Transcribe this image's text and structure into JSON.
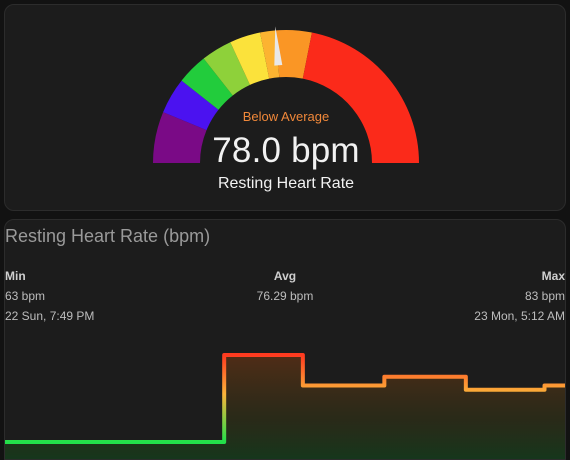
{
  "gauge": {
    "severity_label": "Below Average",
    "value_text": "78.0 bpm",
    "name": "Resting Heart Rate",
    "value": 78.0,
    "min": 40,
    "max": 120,
    "segments": [
      {
        "from": 40,
        "to": 50,
        "color": "#7a0a86"
      },
      {
        "from": 50,
        "to": 57,
        "color": "#4b12f0"
      },
      {
        "from": 57,
        "to": 63,
        "color": "#22cc3c"
      },
      {
        "from": 63,
        "to": 69,
        "color": "#8ed13a"
      },
      {
        "from": 69,
        "to": 75,
        "color": "#fbe23b"
      },
      {
        "from": 75,
        "to": 78,
        "color": "#fcb331"
      },
      {
        "from": 78,
        "to": 85,
        "color": "#fa9625"
      },
      {
        "from": 85,
        "to": 120,
        "color": "#fb2a1a"
      }
    ],
    "needle_color": "#e8e8e8"
  },
  "graph": {
    "title": "Resting Heart Rate (bpm)",
    "stats": {
      "min": {
        "label": "Min",
        "value": "63 bpm",
        "time": "22 Sun, 7:49 PM"
      },
      "avg": {
        "label": "Avg",
        "value": "76.29 bpm"
      },
      "max": {
        "label": "Max",
        "value": "83 bpm",
        "time": "23 Mon, 5:12 AM"
      }
    }
  },
  "chart_data": {
    "type": "line",
    "title": "Resting Heart Rate (bpm)",
    "step": true,
    "series": [
      {
        "x": [
          0,
          0.39,
          0.39,
          0.53,
          0.53,
          0.675,
          0.675,
          0.82,
          0.82,
          0.96,
          0.96,
          1.0
        ],
        "values": [
          63,
          63,
          83,
          83,
          76,
          76,
          78,
          78,
          75,
          75,
          76,
          76
        ]
      }
    ],
    "ylim": [
      63,
      83
    ],
    "grid": false,
    "colors": {
      "low": "#22e04a",
      "mid": "#fbb43a",
      "high": "#ff3a1f"
    }
  }
}
